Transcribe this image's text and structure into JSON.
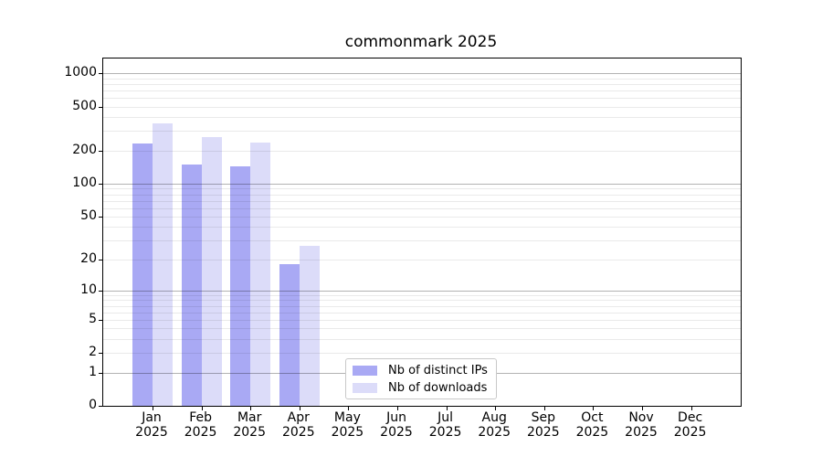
{
  "title": "commonmark 2025",
  "chart_data": {
    "type": "bar",
    "title": "commonmark 2025",
    "scale": "log1p",
    "xlabel": "",
    "ylabel": "",
    "categories": [
      "Jan",
      "Feb",
      "Mar",
      "Apr",
      "May",
      "Jun",
      "Jul",
      "Aug",
      "Sep",
      "Oct",
      "Nov",
      "Dec"
    ],
    "year_label": "2025",
    "series": [
      {
        "name": "Nb of distinct IPs",
        "color": "#a9a9f4",
        "values": [
          230,
          148,
          145,
          18,
          null,
          null,
          null,
          null,
          null,
          null,
          null,
          null
        ]
      },
      {
        "name": "Nb of downloads",
        "color": "#dcdcf9",
        "values": [
          355,
          265,
          238,
          27,
          null,
          null,
          null,
          null,
          null,
          null,
          null,
          null
        ]
      }
    ],
    "y_ticks": [
      0,
      1,
      2,
      5,
      10,
      20,
      50,
      100,
      200,
      500,
      1000
    ],
    "ylim": [
      0,
      1357
    ],
    "grid": {
      "major": [
        1,
        10,
        100,
        1000
      ],
      "minor": [
        2,
        3,
        4,
        5,
        6,
        7,
        8,
        9,
        20,
        30,
        40,
        50,
        60,
        70,
        80,
        90,
        200,
        300,
        400,
        500,
        600,
        700,
        800,
        900
      ]
    },
    "legend_position": "lower-center",
    "colors": {
      "axis": "#000000",
      "grid_major": "#b3b3b3",
      "grid_minor": "#eaeaea",
      "background": "#ffffff"
    }
  }
}
